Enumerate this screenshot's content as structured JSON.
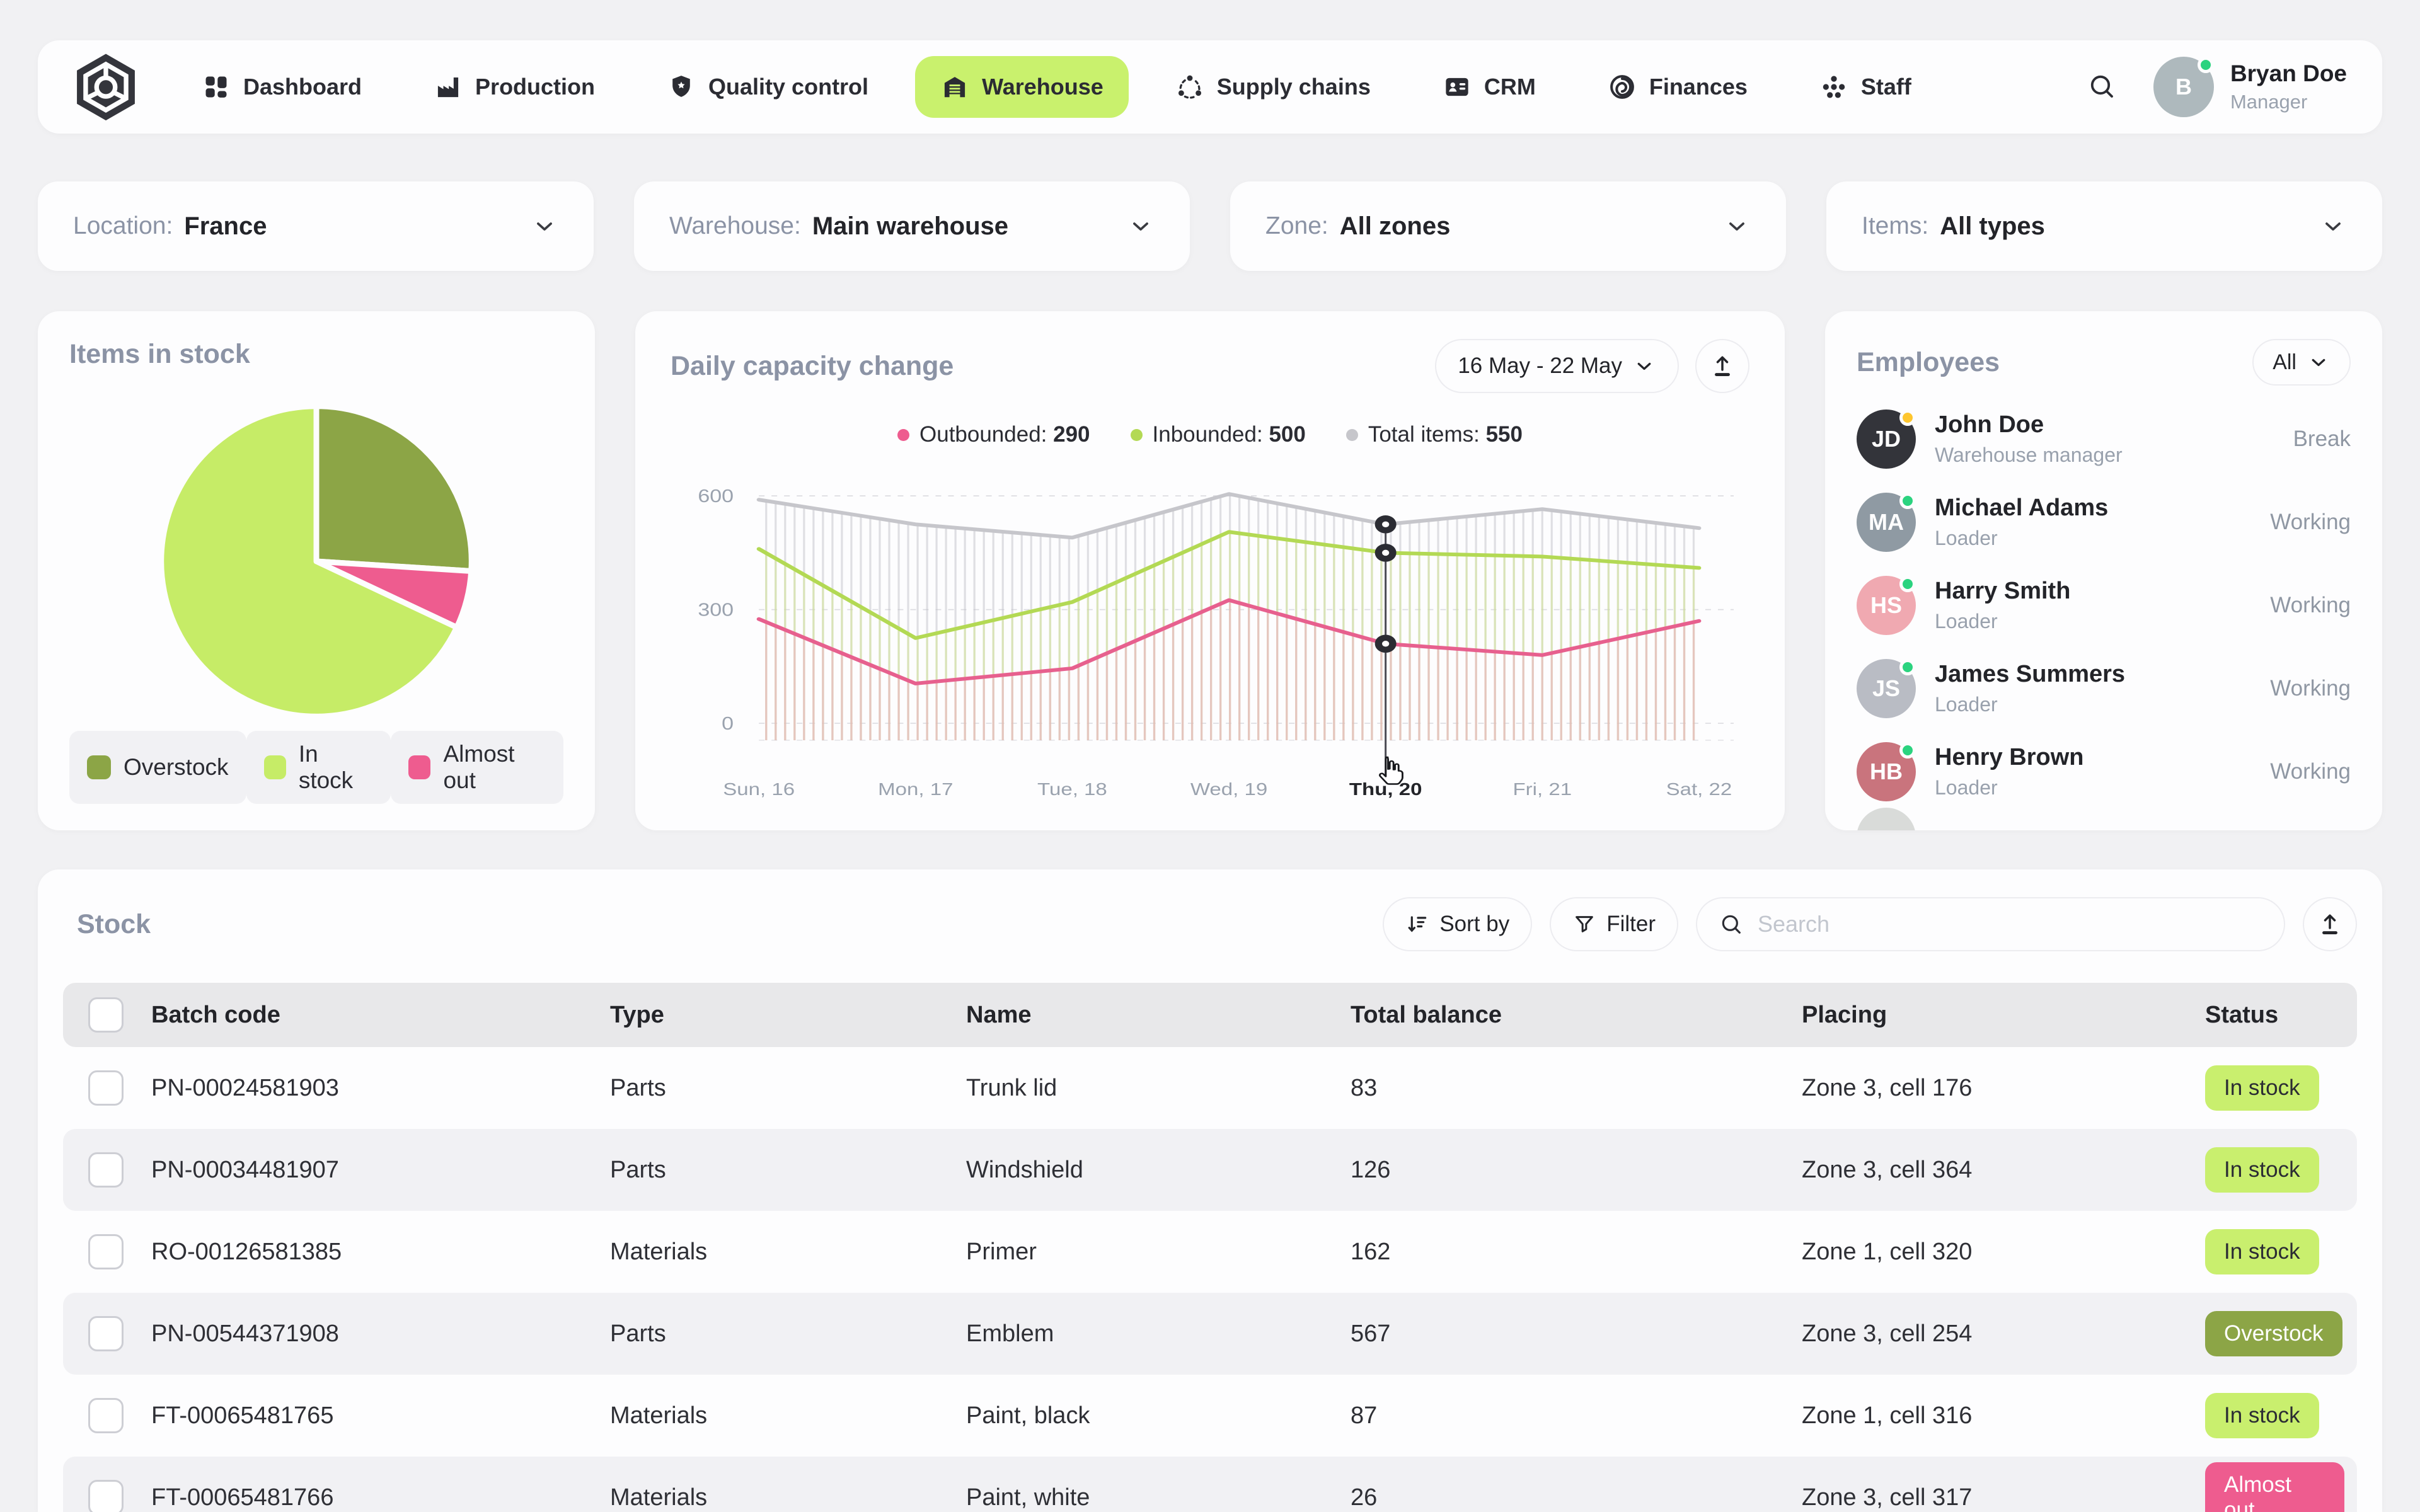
{
  "nav": {
    "items": [
      {
        "label": "Dashboard",
        "icon": "dashboard",
        "active": false
      },
      {
        "label": "Production",
        "icon": "production",
        "active": false
      },
      {
        "label": "Quality control",
        "icon": "quality",
        "active": false
      },
      {
        "label": "Warehouse",
        "icon": "warehouse",
        "active": true
      },
      {
        "label": "Supply chains",
        "icon": "supply",
        "active": false
      },
      {
        "label": "CRM",
        "icon": "crm",
        "active": false
      },
      {
        "label": "Finances",
        "icon": "finances",
        "active": false
      },
      {
        "label": "Staff",
        "icon": "staff",
        "active": false
      }
    ],
    "active_color": "#c9f16d",
    "user": {
      "name": "Bryan Doe",
      "role": "Manager",
      "initials": "B",
      "avatar_color": "#aeb9bd",
      "online_color": "#2bd37f"
    }
  },
  "filters": [
    {
      "label": "Location:",
      "value": "France"
    },
    {
      "label": "Warehouse:",
      "value": "Main warehouse"
    },
    {
      "label": "Zone:",
      "value": "All zones"
    },
    {
      "label": "Items:",
      "value": "All types"
    }
  ],
  "chart_data": [
    {
      "type": "pie",
      "title": "Items in stock",
      "slices": [
        {
          "label": "Overstock",
          "value": 26,
          "color": "#8ca546"
        },
        {
          "label": "Almost out",
          "value": 6,
          "color": "#ee5c8f"
        },
        {
          "label": "In stock",
          "value": 68,
          "color": "#c6ec67"
        }
      ],
      "legend_order": [
        0,
        2,
        1
      ],
      "legend_position": "bottom"
    },
    {
      "type": "line",
      "title": "Daily capacity change",
      "x": [
        "Sun, 16",
        "Mon, 17",
        "Tue, 18",
        "Wed, 19",
        "Thu, 20",
        "Fri, 21",
        "Sat, 22"
      ],
      "series": [
        {
          "name": "Total items",
          "color": "#c6c6cb",
          "values": [
            590,
            525,
            490,
            605,
            525,
            565,
            515
          ]
        },
        {
          "name": "Inbounded",
          "color": "#b3d954",
          "values": [
            460,
            225,
            320,
            505,
            450,
            440,
            410
          ]
        },
        {
          "name": "Outbounded",
          "color": "#e7608e",
          "values": [
            275,
            105,
            145,
            325,
            210,
            180,
            270
          ]
        }
      ],
      "ylim": [
        0,
        650
      ],
      "yticks": [
        600,
        300,
        0
      ],
      "selected_x": "Thu, 20",
      "grid": "dashed-horizontal",
      "legend_position": "top"
    }
  ],
  "capacity": {
    "title": "Daily capacity change",
    "date_range": "16 May - 22 May",
    "legend": [
      {
        "label": "Outbounded",
        "value": "290",
        "color": "#ee5c8f"
      },
      {
        "label": "Inbounded",
        "value": "500",
        "color": "#b3d954"
      },
      {
        "label": "Total items",
        "value": "550",
        "color": "#c6c6cb"
      }
    ]
  },
  "employees": {
    "title": "Employees",
    "filter": "All",
    "items": [
      {
        "name": "John Doe",
        "role": "Warehouse manager",
        "status": "Break",
        "initials": "JD",
        "avatar_color": "#33343a",
        "dot_color": "#fec62e"
      },
      {
        "name": "Michael Adams",
        "role": "Loader",
        "status": "Working",
        "initials": "MA",
        "avatar_color": "#8f9aa3",
        "dot_color": "#2bd37f"
      },
      {
        "name": "Harry Smith",
        "role": "Loader",
        "status": "Working",
        "initials": "HS",
        "avatar_color": "#f0a9b1",
        "dot_color": "#2bd37f"
      },
      {
        "name": "James Summers",
        "role": "Loader",
        "status": "Working",
        "initials": "JS",
        "avatar_color": "#b9bcc4",
        "dot_color": "#2bd37f"
      },
      {
        "name": "Henry Brown",
        "role": "Loader",
        "status": "Working",
        "initials": "HB",
        "avatar_color": "#c9747d",
        "dot_color": "#2bd37f"
      }
    ]
  },
  "stock": {
    "title": "Stock",
    "sort_label": "Sort by",
    "filter_label": "Filter",
    "search_placeholder": "Search",
    "columns": [
      "Batch code",
      "Type",
      "Name",
      "Total balance",
      "Placing",
      "Status"
    ],
    "rows": [
      {
        "code": "PN-00024581903",
        "type": "Parts",
        "name": "Trunk lid",
        "balance": "83",
        "placing": "Zone 3, cell 176",
        "status": "In stock",
        "status_variant": "in-stock"
      },
      {
        "code": "PN-00034481907",
        "type": "Parts",
        "name": "Windshield",
        "balance": "126",
        "placing": "Zone 3, cell 364",
        "status": "In stock",
        "status_variant": "in-stock"
      },
      {
        "code": "RO-00126581385",
        "type": "Materials",
        "name": "Primer",
        "balance": "162",
        "placing": "Zone 1, cell 320",
        "status": "In stock",
        "status_variant": "in-stock"
      },
      {
        "code": "PN-00544371908",
        "type": "Parts",
        "name": "Emblem",
        "balance": "567",
        "placing": "Zone 3, cell 254",
        "status": "Overstock",
        "status_variant": "overstock"
      },
      {
        "code": "FT-00065481765",
        "type": "Materials",
        "name": "Paint, black",
        "balance": "87",
        "placing": "Zone 1, cell 316",
        "status": "In stock",
        "status_variant": "in-stock"
      },
      {
        "code": "FT-00065481766",
        "type": "Materials",
        "name": "Paint, white",
        "balance": "26",
        "placing": "Zone 3, cell 317",
        "status": "Almost out",
        "status_variant": "almost-out"
      }
    ],
    "status_colors": {
      "in-stock": "#c9ef6e",
      "overstock": "#8ca546",
      "almost-out": "#ee5c8f"
    }
  }
}
